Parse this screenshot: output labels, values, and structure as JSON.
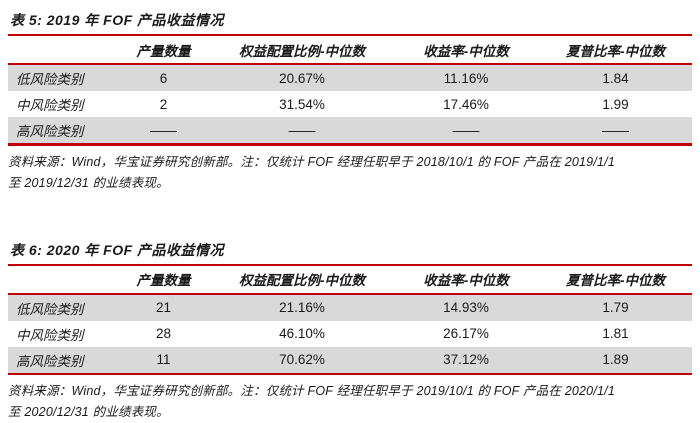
{
  "page": {
    "accent_color": "#C00000",
    "alt_row_color": "#D9D9D9",
    "text_color": "#1a1a1a",
    "background": "#ffffff"
  },
  "table5": {
    "title": "表 5:  2019 年 FOF 产品收益情况",
    "headers": [
      "产量数量",
      "权益配置比例-中位数",
      "收益率-中位数",
      "夏普比率-中位数"
    ],
    "rows": [
      {
        "category": "低风险类别",
        "count": "6",
        "equity": "20.67%",
        "return": "11.16%",
        "sharpe": "1.84"
      },
      {
        "category": "中风险类别",
        "count": "2",
        "equity": "31.54%",
        "return": "17.46%",
        "sharpe": "1.99"
      },
      {
        "category": "高风险类别",
        "count": "——",
        "equity": "——",
        "return": "——",
        "sharpe": "——"
      }
    ],
    "note_line1": "资料来源：Wind，华宝证券研究创新部。注：仅统计 FOF 经理任职早于 2018/10/1 的 FOF 产品在 2019/1/1",
    "note_line2": "至 2019/12/31 的业绩表现。"
  },
  "table6": {
    "title": "表 6:  2020 年 FOF 产品收益情况",
    "headers": [
      "产量数量",
      "权益配置比例-中位数",
      "收益率-中位数",
      "夏普比率-中位数"
    ],
    "rows": [
      {
        "category": "低风险类别",
        "count": "21",
        "equity": "21.16%",
        "return": "14.93%",
        "sharpe": "1.79"
      },
      {
        "category": "中风险类别",
        "count": "28",
        "equity": "46.10%",
        "return": "26.17%",
        "sharpe": "1.81"
      },
      {
        "category": "高风险类别",
        "count": "11",
        "equity": "70.62%",
        "return": "37.12%",
        "sharpe": "1.89"
      }
    ],
    "note_line1": "资料来源：Wind，华宝证券研究创新部。注：仅统计 FOF 经理任职早于 2019/10/1 的 FOF 产品在 2020/1/1",
    "note_line2": "至 2020/12/31 的业绩表现。"
  }
}
